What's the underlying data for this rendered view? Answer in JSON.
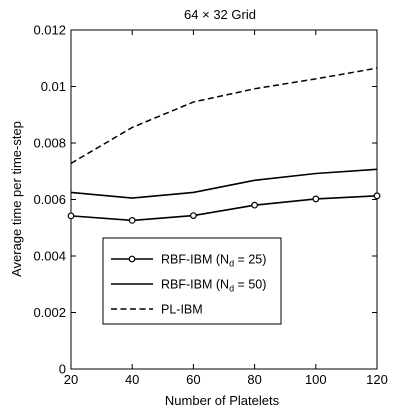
{
  "chart_data": {
    "type": "line",
    "title": "64 × 32 Grid",
    "xlabel": "Number of Platelets",
    "ylabel": "Average time per time-step",
    "xlim": [
      20,
      120
    ],
    "ylim": [
      0,
      0.012
    ],
    "x": [
      20,
      40,
      60,
      80,
      100,
      120
    ],
    "xticks": [
      "20",
      "40",
      "60",
      "80",
      "100",
      "120"
    ],
    "yticks": [
      "0",
      "0.002",
      "0.004",
      "0.006",
      "0.008",
      "0.01",
      "0.012"
    ],
    "grid": false,
    "legend_position": "lower-left",
    "series": [
      {
        "name_main": "RBF-IBM (N",
        "name_sub": "d",
        "name_tail": " = 25)",
        "style": "solid-circle",
        "values": [
          0.00542,
          0.00526,
          0.00543,
          0.0058,
          0.00602,
          0.00613
        ]
      },
      {
        "name_main": "RBF-IBM (N",
        "name_sub": "d",
        "name_tail": " = 50)",
        "style": "solid",
        "values": [
          0.00625,
          0.00605,
          0.00625,
          0.00668,
          0.00692,
          0.00707
        ]
      },
      {
        "name_main": "PL-IBM",
        "name_sub": "",
        "name_tail": "",
        "style": "dashed",
        "values": [
          0.00728,
          0.00855,
          0.00945,
          0.00992,
          0.01027,
          0.01065
        ]
      }
    ]
  }
}
